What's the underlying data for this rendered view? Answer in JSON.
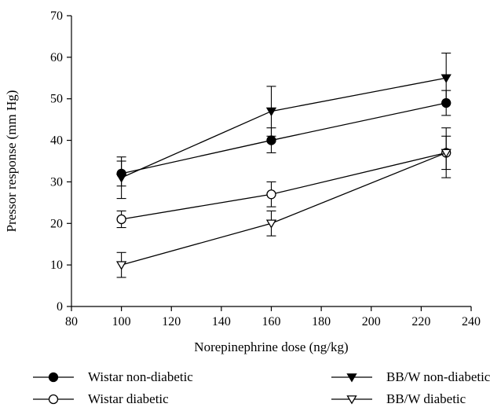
{
  "chart_data": {
    "type": "line",
    "title": "",
    "xlabel": "Norepinephrine dose (ng/kg)",
    "ylabel": "Pressor response (mm Hg)",
    "xlim": [
      80,
      240
    ],
    "ylim": [
      0,
      70
    ],
    "xticks": [
      80,
      100,
      120,
      140,
      160,
      180,
      200,
      220,
      240
    ],
    "yticks": [
      0,
      10,
      20,
      30,
      40,
      50,
      60,
      70
    ],
    "grid": false,
    "legend_position": "bottom",
    "x": [
      100,
      160,
      230
    ],
    "series": [
      {
        "name": "Wistar non-diabetic",
        "marker": "circle",
        "filled": true,
        "values": [
          32,
          40,
          49
        ],
        "errors": [
          3,
          3,
          3
        ]
      },
      {
        "name": "BB/W non-diabetic",
        "marker": "triangle-down",
        "filled": true,
        "values": [
          31,
          47,
          55
        ],
        "errors": [
          5,
          6,
          6
        ]
      },
      {
        "name": "Wistar diabetic",
        "marker": "circle",
        "filled": false,
        "values": [
          21,
          27,
          37
        ],
        "errors": [
          2,
          3,
          6
        ]
      },
      {
        "name": "BB/W diabetic",
        "marker": "triangle-down",
        "filled": false,
        "values": [
          10,
          20,
          37
        ],
        "errors": [
          3,
          3,
          4
        ]
      }
    ]
  }
}
